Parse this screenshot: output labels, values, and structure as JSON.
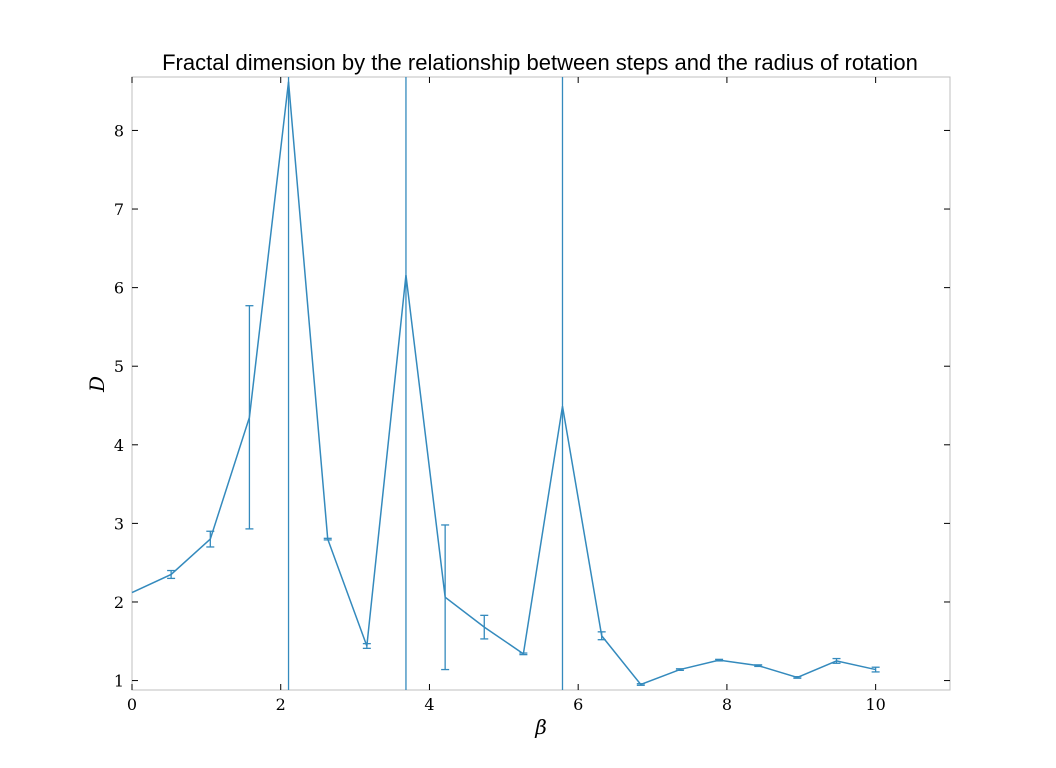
{
  "chart_data": {
    "type": "line",
    "title": "Fractal dimension by the relationship between steps and the radius of rotation",
    "xlabel": "β",
    "ylabel": "D",
    "xlim": [
      0,
      11
    ],
    "ylim": [
      0.88,
      8.68
    ],
    "xticks": [
      0,
      2,
      4,
      6,
      8,
      10
    ],
    "yticks": [
      1,
      2,
      3,
      4,
      5,
      6,
      7,
      8
    ],
    "grid": false,
    "color": "#348abd",
    "series": [
      {
        "x": [
          0,
          0.526,
          1.053,
          1.579,
          2.105,
          2.632,
          3.158,
          3.684,
          4.211,
          4.737,
          5.263,
          5.789,
          6.316,
          6.842,
          7.368,
          7.895,
          8.421,
          8.947,
          9.474,
          10.0
        ],
        "y": [
          2.12,
          2.35,
          2.8,
          4.35,
          8.62,
          2.8,
          1.44,
          6.16,
          2.06,
          1.68,
          1.34,
          4.49,
          1.57,
          0.95,
          1.14,
          1.26,
          1.19,
          1.04,
          1.25,
          1.14
        ],
        "yerr": [
          0,
          0.05,
          0.1,
          1.42,
          10.0,
          0.01,
          0.03,
          10.0,
          0.92,
          0.15,
          0.01,
          10.0,
          0.05,
          0.01,
          0.01,
          0.01,
          0.01,
          0.01,
          0.03,
          0.03
        ]
      }
    ]
  }
}
